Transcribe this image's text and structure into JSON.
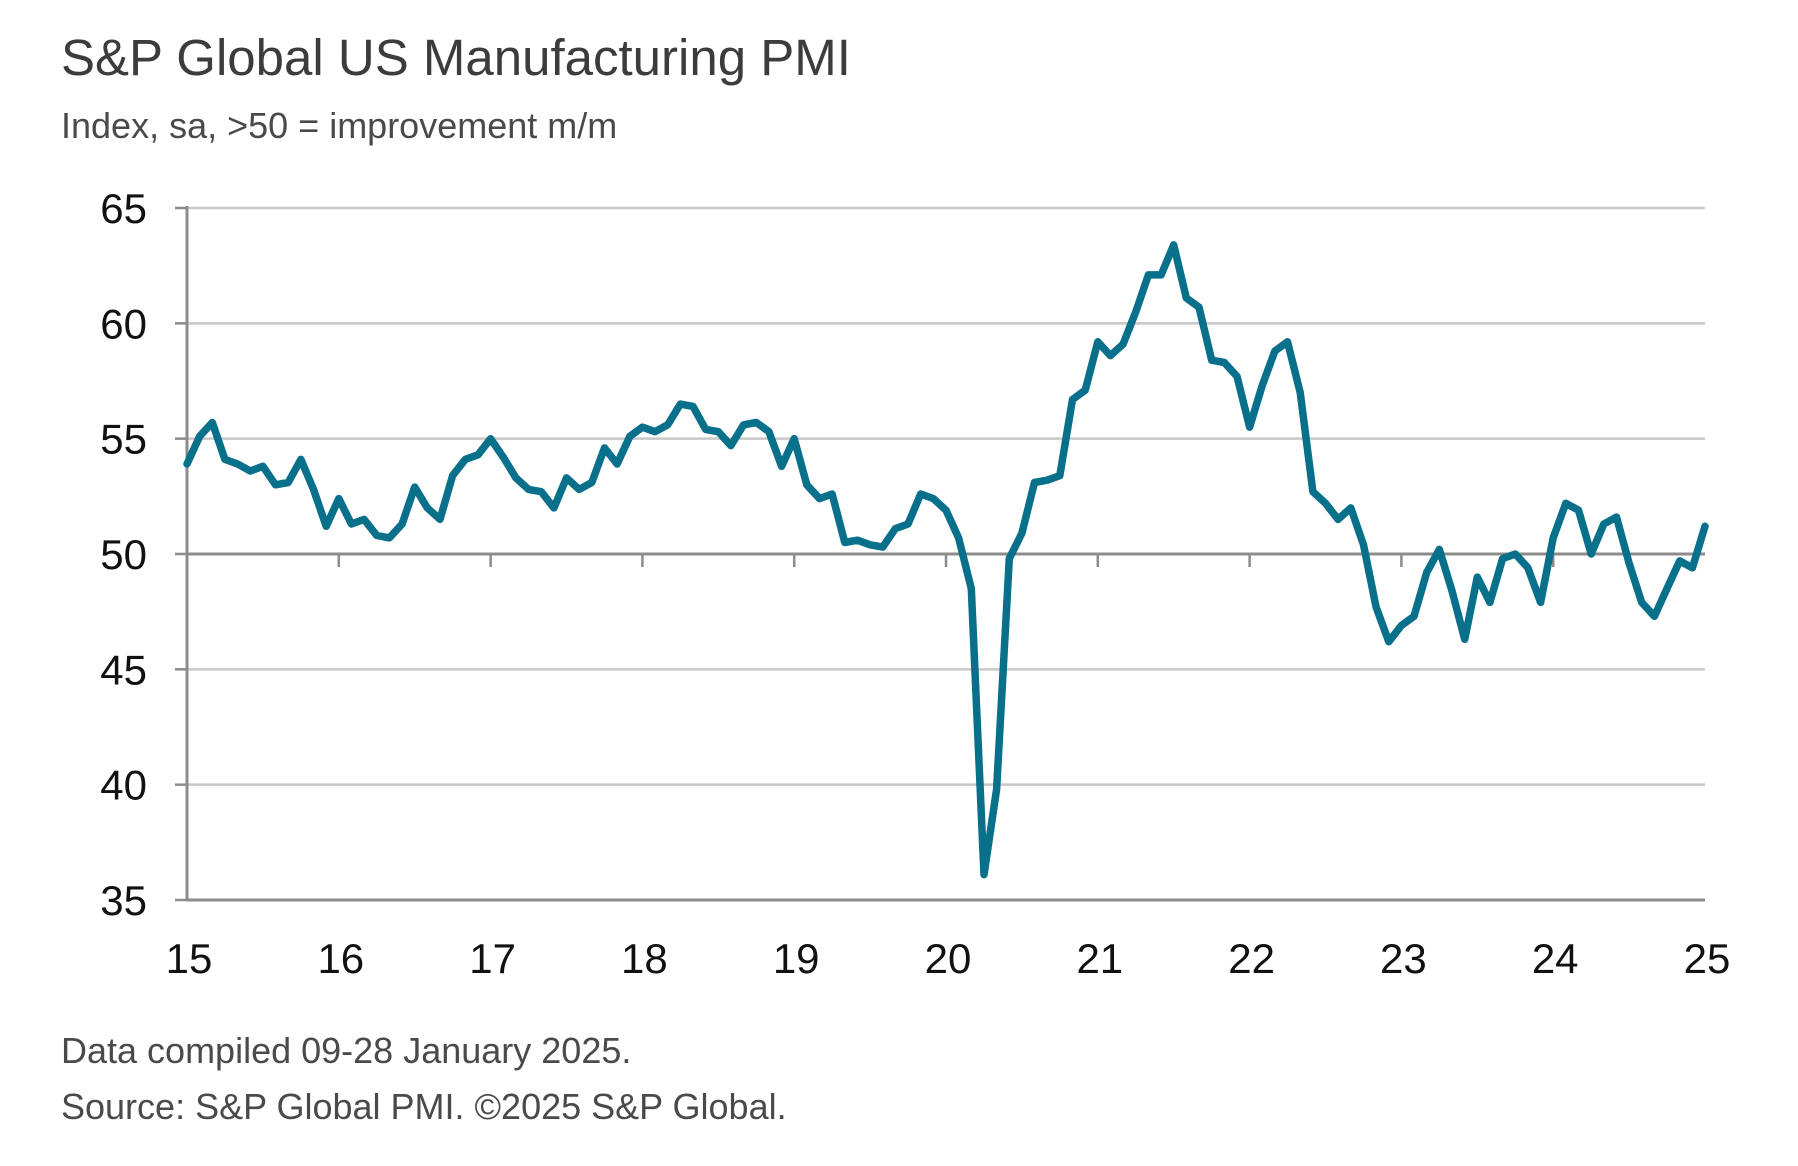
{
  "title": "S&P Global US Manufacturing PMI",
  "subtitle": "Index, sa, >50 = improvement m/m",
  "footer": {
    "line1": "Data compiled 09-28 January 2025.",
    "line2": "Source: S&P Global PMI. ©2025 S&P Global."
  },
  "colors": {
    "series": "#08708a",
    "grid": "#c8c8c8",
    "axis": "#8c8c8c",
    "baseline": "#8c8c8c"
  },
  "chart_data": {
    "type": "line",
    "title": "S&P Global US Manufacturing PMI",
    "subtitle": "Index, sa, >50 = improvement m/m",
    "xlabel": "",
    "ylabel": "",
    "ylim": [
      35,
      65
    ],
    "xlim": [
      2015,
      2025
    ],
    "grid": true,
    "yticks": [
      35,
      40,
      45,
      50,
      55,
      60,
      65
    ],
    "xticks": [
      {
        "value": 2015,
        "label": "15"
      },
      {
        "value": 2016,
        "label": "16"
      },
      {
        "value": 2017,
        "label": "17"
      },
      {
        "value": 2018,
        "label": "18"
      },
      {
        "value": 2019,
        "label": "19"
      },
      {
        "value": 2020,
        "label": "20"
      },
      {
        "value": 2021,
        "label": "21"
      },
      {
        "value": 2022,
        "label": "22"
      },
      {
        "value": 2023,
        "label": "23"
      },
      {
        "value": 2024,
        "label": "24"
      },
      {
        "value": 2025,
        "label": "25"
      }
    ],
    "series": [
      {
        "color": "#08708a",
        "start_year": 2015,
        "values": [
          53.9,
          55.1,
          55.7,
          54.1,
          53.9,
          53.6,
          53.8,
          53.0,
          53.1,
          54.1,
          52.8,
          51.2,
          52.4,
          51.3,
          51.5,
          50.8,
          50.7,
          51.3,
          52.9,
          52.0,
          51.5,
          53.4,
          54.1,
          54.3,
          55.0,
          54.2,
          53.3,
          52.8,
          52.7,
          52.0,
          53.3,
          52.8,
          53.1,
          54.6,
          53.9,
          55.1,
          55.5,
          55.3,
          55.6,
          56.5,
          56.4,
          55.4,
          55.3,
          54.7,
          55.6,
          55.7,
          55.3,
          53.8,
          55.0,
          53.0,
          52.4,
          52.6,
          50.5,
          50.6,
          50.4,
          50.3,
          51.1,
          51.3,
          52.6,
          52.4,
          51.9,
          50.7,
          48.5,
          36.1,
          39.8,
          49.8,
          50.9,
          53.1,
          53.2,
          53.4,
          56.7,
          57.1,
          59.2,
          58.6,
          59.1,
          60.5,
          62.1,
          62.1,
          63.4,
          61.1,
          60.7,
          58.4,
          58.3,
          57.7,
          55.5,
          57.3,
          58.8,
          59.2,
          57.0,
          52.7,
          52.2,
          51.5,
          52.0,
          50.4,
          47.7,
          46.2,
          46.9,
          47.3,
          49.2,
          50.2,
          48.4,
          46.3,
          49.0,
          47.9,
          49.8,
          50.0,
          49.4,
          47.9,
          50.7,
          52.2,
          51.9,
          50.0,
          51.3,
          51.6,
          49.6,
          47.9,
          47.3,
          48.5,
          49.7,
          49.4,
          51.2
        ]
      }
    ]
  }
}
